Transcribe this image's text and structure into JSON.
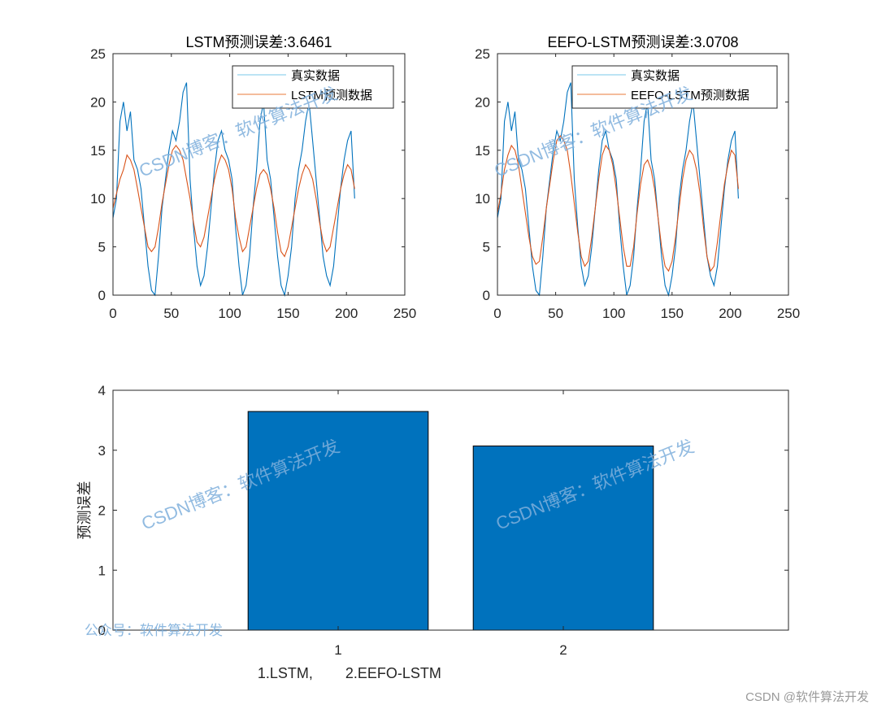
{
  "chart_data": [
    {
      "type": "line",
      "title": "LSTM预测误差:3.6461",
      "xlim": [
        0,
        250
      ],
      "ylim": [
        0,
        25
      ],
      "xticks": [
        0,
        50,
        100,
        150,
        200,
        250
      ],
      "yticks": [
        0,
        5,
        10,
        15,
        20,
        25
      ],
      "legend": [
        "真实数据",
        "LSTM预测数据"
      ],
      "legend_position": "top-right",
      "series": [
        {
          "name": "真实数据",
          "color": "#0072bd",
          "x": [
            0,
            3,
            6,
            9,
            12,
            15,
            18,
            21,
            24,
            27,
            30,
            33,
            36,
            39,
            42,
            45,
            48,
            51,
            54,
            57,
            60,
            63,
            66,
            69,
            72,
            75,
            78,
            81,
            84,
            87,
            90,
            93,
            96,
            99,
            102,
            105,
            108,
            111,
            114,
            117,
            120,
            123,
            126,
            129,
            132,
            135,
            138,
            141,
            144,
            147,
            150,
            153,
            156,
            159,
            162,
            165,
            168,
            171,
            174,
            177,
            180,
            183,
            186,
            189,
            192,
            195,
            198,
            201,
            204,
            207
          ],
          "values": [
            8,
            10,
            18,
            20,
            17,
            19,
            14,
            13,
            11,
            7,
            3,
            0.5,
            0,
            4,
            9,
            12,
            15,
            17,
            16,
            18,
            21,
            22,
            12,
            7,
            3,
            1,
            2,
            5,
            9,
            13,
            16,
            17,
            15,
            14,
            12,
            7,
            3,
            0,
            1,
            4,
            9,
            13,
            18,
            20,
            14,
            12,
            8,
            4,
            1,
            0,
            2,
            5,
            10,
            13,
            15,
            18,
            20,
            16,
            12,
            8,
            4,
            2,
            1,
            3,
            7,
            11,
            14,
            16,
            17,
            10
          ]
        },
        {
          "name": "LSTM预测数据",
          "color": "#d95319",
          "x": [
            0,
            3,
            6,
            9,
            12,
            15,
            18,
            21,
            24,
            27,
            30,
            33,
            36,
            39,
            42,
            45,
            48,
            51,
            54,
            57,
            60,
            63,
            66,
            69,
            72,
            75,
            78,
            81,
            84,
            87,
            90,
            93,
            96,
            99,
            102,
            105,
            108,
            111,
            114,
            117,
            120,
            123,
            126,
            129,
            132,
            135,
            138,
            141,
            144,
            147,
            150,
            153,
            156,
            159,
            162,
            165,
            168,
            171,
            174,
            177,
            180,
            183,
            186,
            189,
            192,
            195,
            198,
            201,
            204,
            207
          ],
          "values": [
            9,
            10.5,
            12,
            13,
            14.5,
            14,
            13,
            11,
            9,
            7,
            5,
            4.5,
            5,
            7,
            9.5,
            11.5,
            13.5,
            15,
            15.5,
            15,
            14,
            12,
            10,
            7.5,
            5.5,
            5,
            6,
            8,
            10,
            12,
            13.5,
            14.5,
            14,
            13,
            11,
            8,
            6,
            4.5,
            5,
            7,
            9,
            11,
            12.5,
            13,
            12.5,
            11,
            9,
            6.5,
            4.5,
            4,
            5,
            7,
            9,
            11,
            12.5,
            13.5,
            13,
            12,
            10,
            7.5,
            5.5,
            4.5,
            5,
            7,
            9,
            11,
            12.5,
            13.5,
            13,
            11
          ]
        }
      ]
    },
    {
      "type": "line",
      "title": "EEFO-LSTM预测误差:3.0708",
      "xlim": [
        0,
        250
      ],
      "ylim": [
        0,
        25
      ],
      "xticks": [
        0,
        50,
        100,
        150,
        200,
        250
      ],
      "yticks": [
        0,
        5,
        10,
        15,
        20,
        25
      ],
      "legend": [
        "真实数据",
        "EEFO-LSTM预测数据"
      ],
      "legend_position": "top-right",
      "series": [
        {
          "name": "真实数据",
          "color": "#0072bd",
          "x": [
            0,
            3,
            6,
            9,
            12,
            15,
            18,
            21,
            24,
            27,
            30,
            33,
            36,
            39,
            42,
            45,
            48,
            51,
            54,
            57,
            60,
            63,
            66,
            69,
            72,
            75,
            78,
            81,
            84,
            87,
            90,
            93,
            96,
            99,
            102,
            105,
            108,
            111,
            114,
            117,
            120,
            123,
            126,
            129,
            132,
            135,
            138,
            141,
            144,
            147,
            150,
            153,
            156,
            159,
            162,
            165,
            168,
            171,
            174,
            177,
            180,
            183,
            186,
            189,
            192,
            195,
            198,
            201,
            204,
            207
          ],
          "values": [
            8,
            10,
            18,
            20,
            17,
            19,
            14,
            13,
            11,
            7,
            3,
            0.5,
            0,
            4,
            9,
            12,
            15,
            17,
            16,
            18,
            21,
            22,
            12,
            7,
            3,
            1,
            2,
            5,
            9,
            13,
            16,
            17,
            15,
            14,
            12,
            7,
            3,
            0,
            1,
            4,
            9,
            13,
            18,
            20,
            14,
            12,
            8,
            4,
            1,
            0,
            2,
            5,
            10,
            13,
            15,
            18,
            20,
            16,
            12,
            8,
            4,
            2,
            1,
            3,
            7,
            11,
            14,
            16,
            17,
            10
          ]
        },
        {
          "name": "EEFO-LSTM预测数据",
          "color": "#d95319",
          "x": [
            0,
            3,
            6,
            9,
            12,
            15,
            18,
            21,
            24,
            27,
            30,
            33,
            36,
            39,
            42,
            45,
            48,
            51,
            54,
            57,
            60,
            63,
            66,
            69,
            72,
            75,
            78,
            81,
            84,
            87,
            90,
            93,
            96,
            99,
            102,
            105,
            108,
            111,
            114,
            117,
            120,
            123,
            126,
            129,
            132,
            135,
            138,
            141,
            144,
            147,
            150,
            153,
            156,
            159,
            162,
            165,
            168,
            171,
            174,
            177,
            180,
            183,
            186,
            189,
            192,
            195,
            198,
            201,
            204,
            207
          ],
          "values": [
            8.5,
            10.5,
            13,
            14.5,
            15.5,
            15,
            13.5,
            11,
            8.5,
            6,
            4,
            3.2,
            3.5,
            6,
            9,
            11.5,
            14,
            16,
            16.5,
            16,
            15,
            12.5,
            9.5,
            6.5,
            4,
            3,
            3.5,
            6,
            9,
            12,
            14.5,
            15.5,
            15,
            13.5,
            11,
            8,
            5,
            3,
            3,
            5,
            8.5,
            11.5,
            13.5,
            14,
            13,
            11,
            8,
            5,
            3,
            2.5,
            3.5,
            6,
            9,
            12,
            14,
            15,
            14.5,
            13,
            10.5,
            7,
            4,
            2.5,
            3,
            5.5,
            8.5,
            11.5,
            13.5,
            15,
            14.5,
            11
          ]
        }
      ]
    },
    {
      "type": "bar",
      "categories": [
        "1",
        "2"
      ],
      "values": [
        3.6461,
        3.0708
      ],
      "xlim": [
        0,
        3
      ],
      "ylim": [
        0,
        4
      ],
      "yticks": [
        0,
        1,
        2,
        3,
        4
      ],
      "ylabel": "预测误差",
      "xlabel": "1.LSTM,        2.EEFO-LSTM",
      "color": "#0072bd"
    }
  ],
  "watermarks": {
    "blog": "CSDN博客：软件算法开发",
    "official": "公众号：软件算法开发",
    "footer": "CSDN @软件算法开发"
  }
}
